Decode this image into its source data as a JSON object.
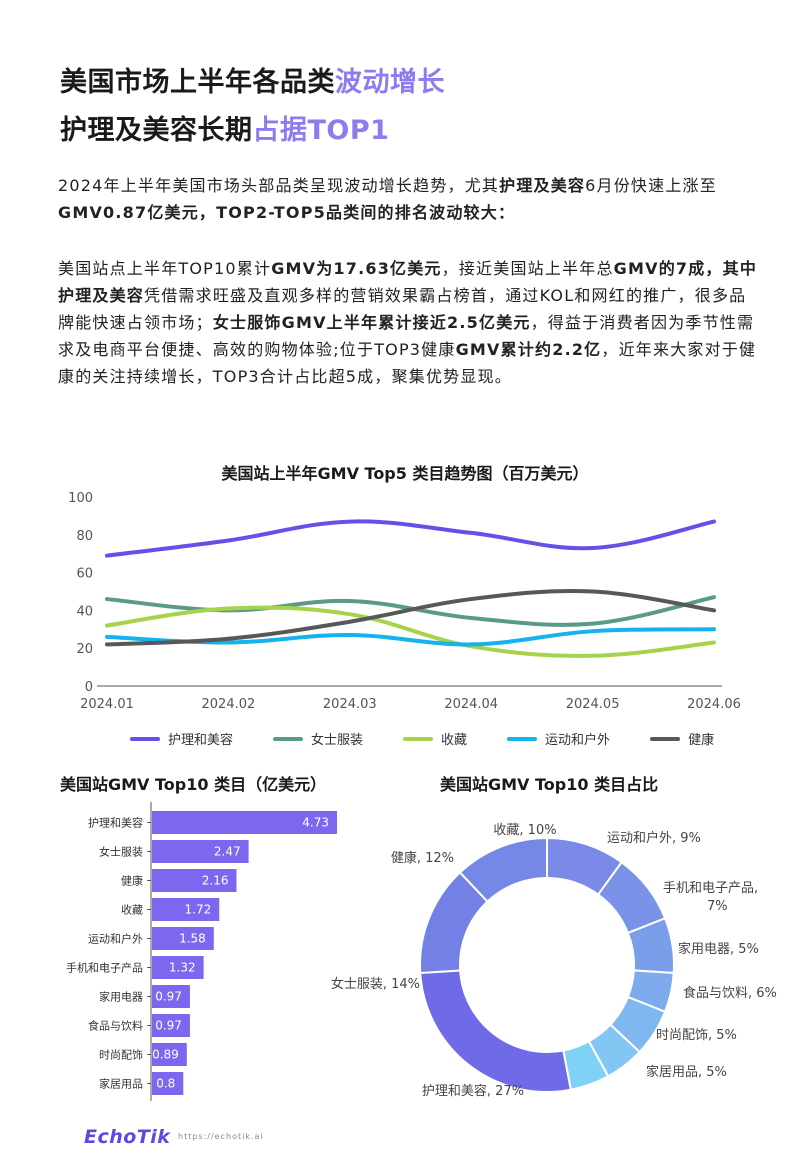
{
  "header": {
    "title1_main": "美国市场上半年各品类",
    "title1_hl": "波动增长",
    "title2_main": "护理及美容长期",
    "title2_hl": "占据TOP1"
  },
  "paragraph1": [
    {
      "t": "2024年上半年美国市场头部品类呈现波动增长趋势，尤其",
      "b": false
    },
    {
      "t": "护理及美容",
      "b": true
    },
    {
      "t": "6月份快速上涨至",
      "b": false
    },
    {
      "t": "GMV0.87亿美元，TOP2-TOP5品类间的排名波动较大：",
      "b": true
    }
  ],
  "paragraph2": [
    {
      "t": "美国站点上半年TOP10累计",
      "b": false
    },
    {
      "t": "GMV为17.63亿美元",
      "b": true
    },
    {
      "t": "，接近美国站上半年总",
      "b": false
    },
    {
      "t": "GMV的7成，其中护理及美容",
      "b": true
    },
    {
      "t": "凭借需求旺盛及直观多样的营销效果霸占榜首，通过KOL和网红的推广，很多品牌能快速占领市场；",
      "b": false
    },
    {
      "t": "女士服饰GMV上半年累计接近2.5亿美元",
      "b": true
    },
    {
      "t": "，得益于消费者因为季节性需求及电商平台便捷、高效的购物体验;位于TOP3健康",
      "b": false
    },
    {
      "t": "GMV累计约2.2亿",
      "b": true
    },
    {
      "t": "，近年来大家对于健康的关注持续增长，TOP3合计占比超5成，聚集优势显现。",
      "b": false
    }
  ],
  "colors": {
    "accent": "#8c7cf0",
    "bar": "#7b68ee",
    "line_beauty": "#6252e8",
    "line_women": "#5a9a88",
    "line_collect": "#a6d34a",
    "line_sports": "#16b2ee",
    "line_health": "#585858"
  },
  "chart_data": [
    {
      "type": "line",
      "title": "美国站上半年GMV Top5 类目趋势图（百万美元）",
      "x": [
        "2024.01",
        "2024.02",
        "2024.03",
        "2024.04",
        "2024.05",
        "2024.06"
      ],
      "ylim": [
        0,
        100
      ],
      "yticks": [
        0,
        20,
        40,
        60,
        80,
        100
      ],
      "legend": "bottom",
      "series": [
        {
          "name": "护理和美容",
          "values": [
            69,
            77,
            87,
            81,
            73,
            87
          ]
        },
        {
          "name": "女士服装",
          "values": [
            46,
            40,
            45,
            36,
            33,
            47
          ]
        },
        {
          "name": "收藏",
          "values": [
            32,
            41,
            38,
            21,
            16,
            23
          ]
        },
        {
          "name": "运动和户外",
          "values": [
            26,
            23,
            27,
            22,
            29,
            30
          ]
        },
        {
          "name": "健康",
          "values": [
            22,
            25,
            34,
            46,
            50,
            40
          ]
        }
      ]
    },
    {
      "type": "bar",
      "title": "美国站GMV Top10 类目（亿美元）",
      "orientation": "horizontal",
      "categories": [
        "护理和美容",
        "女士服装",
        "健康",
        "收藏",
        "运动和户外",
        "手机和电子产品",
        "家用电器",
        "食品与饮料",
        "时尚配饰",
        "家居用品"
      ],
      "values": [
        4.73,
        2.47,
        2.16,
        1.72,
        1.58,
        1.32,
        0.97,
        0.97,
        0.89,
        0.8
      ]
    },
    {
      "type": "pie",
      "title": "美国站GMV Top10 类目占比",
      "donut": true,
      "slices": [
        {
          "name": "收藏",
          "value": 10,
          "label": "收藏, 10%"
        },
        {
          "name": "运动和户外",
          "value": 9,
          "label": "运动和户外, 9%"
        },
        {
          "name": "手机和电子产品",
          "value": 7,
          "label": "手机和电子产品, 7%"
        },
        {
          "name": "家用电器",
          "value": 5,
          "label": "家用电器, 5%"
        },
        {
          "name": "食品与饮料",
          "value": 6,
          "label": "食品与饮料, 6%"
        },
        {
          "name": "时尚配饰",
          "value": 5,
          "label": "时尚配饰, 5%"
        },
        {
          "name": "家居用品",
          "value": 5,
          "label": "家居用品, 5%"
        },
        {
          "name": "护理和美容",
          "value": 27,
          "label": "护理和美容, 27%"
        },
        {
          "name": "女士服装",
          "value": 14,
          "label": "女士服装, 14%"
        },
        {
          "name": "健康",
          "value": 12,
          "label": "健康, 12%"
        }
      ]
    }
  ],
  "footer": {
    "logo": "EchoTik",
    "url": "https://echotik.ai"
  }
}
